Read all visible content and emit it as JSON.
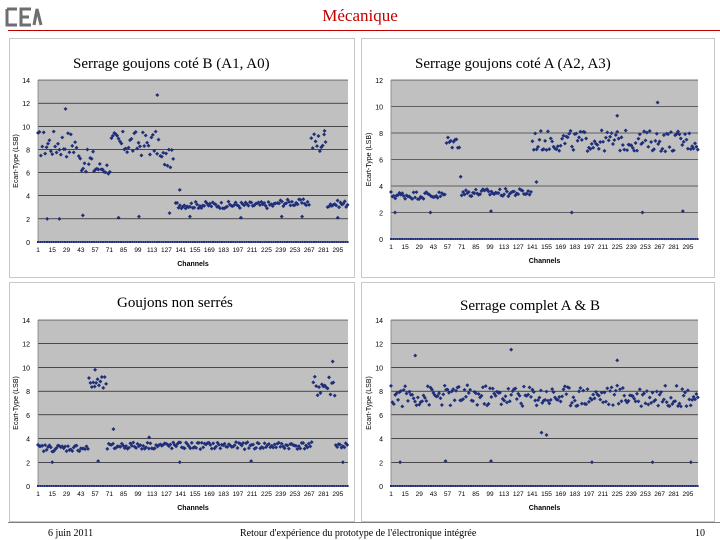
{
  "header": {
    "title": "Mécanique",
    "logo_icon": "cea-logo-icon"
  },
  "footer": {
    "date": "6 juin 2011",
    "caption": "Retour d'expérience du prototype de l'électronique intégrée",
    "page": "10"
  },
  "colors": {
    "title": "#c00000",
    "plot_bg": "#c0c0c0",
    "marker": "#1f2f7a",
    "grid": "#000000"
  },
  "chart_data": [
    {
      "type": "scatter",
      "title": "Serrage goujons coté B (A1, A0)",
      "xlabel": "Channels",
      "ylabel": "Ecart-Type (LSB)",
      "ylim": [
        0,
        14
      ],
      "yticks": [
        "0",
        "2",
        "4",
        "6",
        "8",
        "10",
        "12",
        "14"
      ],
      "xticks": [
        "1",
        "15",
        "29",
        "43",
        "57",
        "71",
        "85",
        "99",
        "113",
        "127",
        "141",
        "155",
        "169",
        "183",
        "197",
        "211",
        "225",
        "239",
        "253",
        "267",
        "281",
        "295"
      ],
      "xrange": [
        1,
        305
      ],
      "grid": "horizontal",
      "segments": [
        {
          "from": 1,
          "to": 40,
          "base": 8.5,
          "spread": 1.2
        },
        {
          "from": 41,
          "to": 55,
          "base": 7.0,
          "spread": 1.0
        },
        {
          "from": 56,
          "to": 72,
          "base": 6.4,
          "spread": 0.6
        },
        {
          "from": 73,
          "to": 120,
          "base": 8.5,
          "spread": 1.1
        },
        {
          "from": 121,
          "to": 135,
          "base": 7.2,
          "spread": 0.8
        },
        {
          "from": 136,
          "to": 235,
          "base": 3.2,
          "spread": 0.3
        },
        {
          "from": 236,
          "to": 268,
          "base": 3.4,
          "spread": 0.3
        },
        {
          "from": 269,
          "to": 284,
          "base": 8.6,
          "spread": 1.0
        },
        {
          "from": 285,
          "to": 305,
          "base": 3.3,
          "spread": 0.3
        }
      ],
      "outliers": [
        {
          "x": 28,
          "y": 11.5
        },
        {
          "x": 118,
          "y": 12.7
        },
        {
          "x": 140,
          "y": 4.5
        },
        {
          "x": 130,
          "y": 2.5
        },
        {
          "x": 150,
          "y": 2.2
        },
        {
          "x": 260,
          "y": 2.2
        },
        {
          "x": 10,
          "y": 2.0
        },
        {
          "x": 22,
          "y": 2.0
        },
        {
          "x": 45,
          "y": 2.3
        },
        {
          "x": 80,
          "y": 2.1
        },
        {
          "x": 100,
          "y": 2.2
        },
        {
          "x": 200,
          "y": 2.1
        },
        {
          "x": 240,
          "y": 2.2
        },
        {
          "x": 295,
          "y": 2.1
        },
        {
          "x": 282,
          "y": 9.6
        }
      ]
    },
    {
      "type": "scatter",
      "title": "Serrage goujons coté A (A2, A3)",
      "xlabel": "Channels",
      "ylabel": "Ecart-Type (LSB)",
      "ylim": [
        0,
        12
      ],
      "yticks": [
        "0",
        "2",
        "4",
        "6",
        "8",
        "10",
        "12"
      ],
      "xticks": [
        "1",
        "15",
        "29",
        "43",
        "57",
        "71",
        "85",
        "99",
        "113",
        "127",
        "141",
        "155",
        "169",
        "183",
        "197",
        "211",
        "225",
        "239",
        "253",
        "267",
        "281",
        "295"
      ],
      "xrange": [
        1,
        305
      ],
      "grid": "horizontal",
      "segments": [
        {
          "from": 1,
          "to": 55,
          "base": 3.3,
          "spread": 0.3
        },
        {
          "from": 56,
          "to": 70,
          "base": 7.3,
          "spread": 0.5
        },
        {
          "from": 71,
          "to": 140,
          "base": 3.5,
          "spread": 0.3
        },
        {
          "from": 141,
          "to": 305,
          "base": 7.4,
          "spread": 0.8
        }
      ],
      "outliers": [
        {
          "x": 265,
          "y": 10.3
        },
        {
          "x": 225,
          "y": 9.3
        },
        {
          "x": 70,
          "y": 4.7
        },
        {
          "x": 145,
          "y": 4.3
        },
        {
          "x": 5,
          "y": 2.0
        },
        {
          "x": 40,
          "y": 2.0
        },
        {
          "x": 100,
          "y": 2.1
        },
        {
          "x": 180,
          "y": 2.0
        },
        {
          "x": 250,
          "y": 2.0
        },
        {
          "x": 290,
          "y": 2.1
        }
      ]
    },
    {
      "type": "scatter",
      "title": "Goujons non serrés",
      "xlabel": "Channels",
      "ylabel": "Ecart-Type (LSB)",
      "ylim": [
        0,
        14
      ],
      "yticks": [
        "0",
        "2",
        "4",
        "6",
        "8",
        "10",
        "12",
        "14"
      ],
      "xticks": [
        "1",
        "15",
        "29",
        "43",
        "57",
        "71",
        "85",
        "99",
        "113",
        "127",
        "141",
        "155",
        "169",
        "183",
        "197",
        "211",
        "225",
        "239",
        "253",
        "267",
        "281",
        "295"
      ],
      "xrange": [
        1,
        305
      ],
      "grid": "horizontal",
      "segments": [
        {
          "from": 1,
          "to": 50,
          "base": 3.2,
          "spread": 0.3
        },
        {
          "from": 51,
          "to": 68,
          "base": 8.6,
          "spread": 0.6
        },
        {
          "from": 69,
          "to": 78,
          "base": 3.3,
          "spread": 0.3
        },
        {
          "from": 79,
          "to": 270,
          "base": 3.4,
          "spread": 0.3
        },
        {
          "from": 271,
          "to": 292,
          "base": 8.4,
          "spread": 1.0
        },
        {
          "from": 293,
          "to": 305,
          "base": 3.4,
          "spread": 0.3
        }
      ],
      "outliers": [
        {
          "x": 57,
          "y": 9.8
        },
        {
          "x": 75,
          "y": 4.8
        },
        {
          "x": 290,
          "y": 10.5
        },
        {
          "x": 110,
          "y": 4.1
        },
        {
          "x": 15,
          "y": 2.0
        },
        {
          "x": 60,
          "y": 2.1
        },
        {
          "x": 140,
          "y": 2.0
        },
        {
          "x": 210,
          "y": 2.1
        },
        {
          "x": 300,
          "y": 2.0
        }
      ]
    },
    {
      "type": "scatter",
      "title": "Serrage complet A & B",
      "xlabel": "Channels",
      "ylabel": "Ecart-Type (LSB)",
      "ylim": [
        0,
        14
      ],
      "yticks": [
        "0",
        "2",
        "4",
        "6",
        "8",
        "10",
        "12",
        "14"
      ],
      "xticks": [
        "1",
        "15",
        "29",
        "43",
        "57",
        "71",
        "85",
        "99",
        "113",
        "127",
        "141",
        "155",
        "169",
        "183",
        "197",
        "211",
        "225",
        "239",
        "253",
        "267",
        "281",
        "295"
      ],
      "xrange": [
        1,
        305
      ],
      "grid": "horizontal",
      "segments": [
        {
          "from": 1,
          "to": 305,
          "base": 7.6,
          "spread": 0.9
        }
      ],
      "outliers": [
        {
          "x": 25,
          "y": 11.0
        },
        {
          "x": 120,
          "y": 11.5
        },
        {
          "x": 225,
          "y": 10.6
        },
        {
          "x": 150,
          "y": 4.5
        },
        {
          "x": 155,
          "y": 4.3
        },
        {
          "x": 10,
          "y": 2.0
        },
        {
          "x": 55,
          "y": 2.1
        },
        {
          "x": 100,
          "y": 2.1
        },
        {
          "x": 200,
          "y": 2.0
        },
        {
          "x": 260,
          "y": 2.0
        },
        {
          "x": 298,
          "y": 2.0
        }
      ]
    }
  ]
}
